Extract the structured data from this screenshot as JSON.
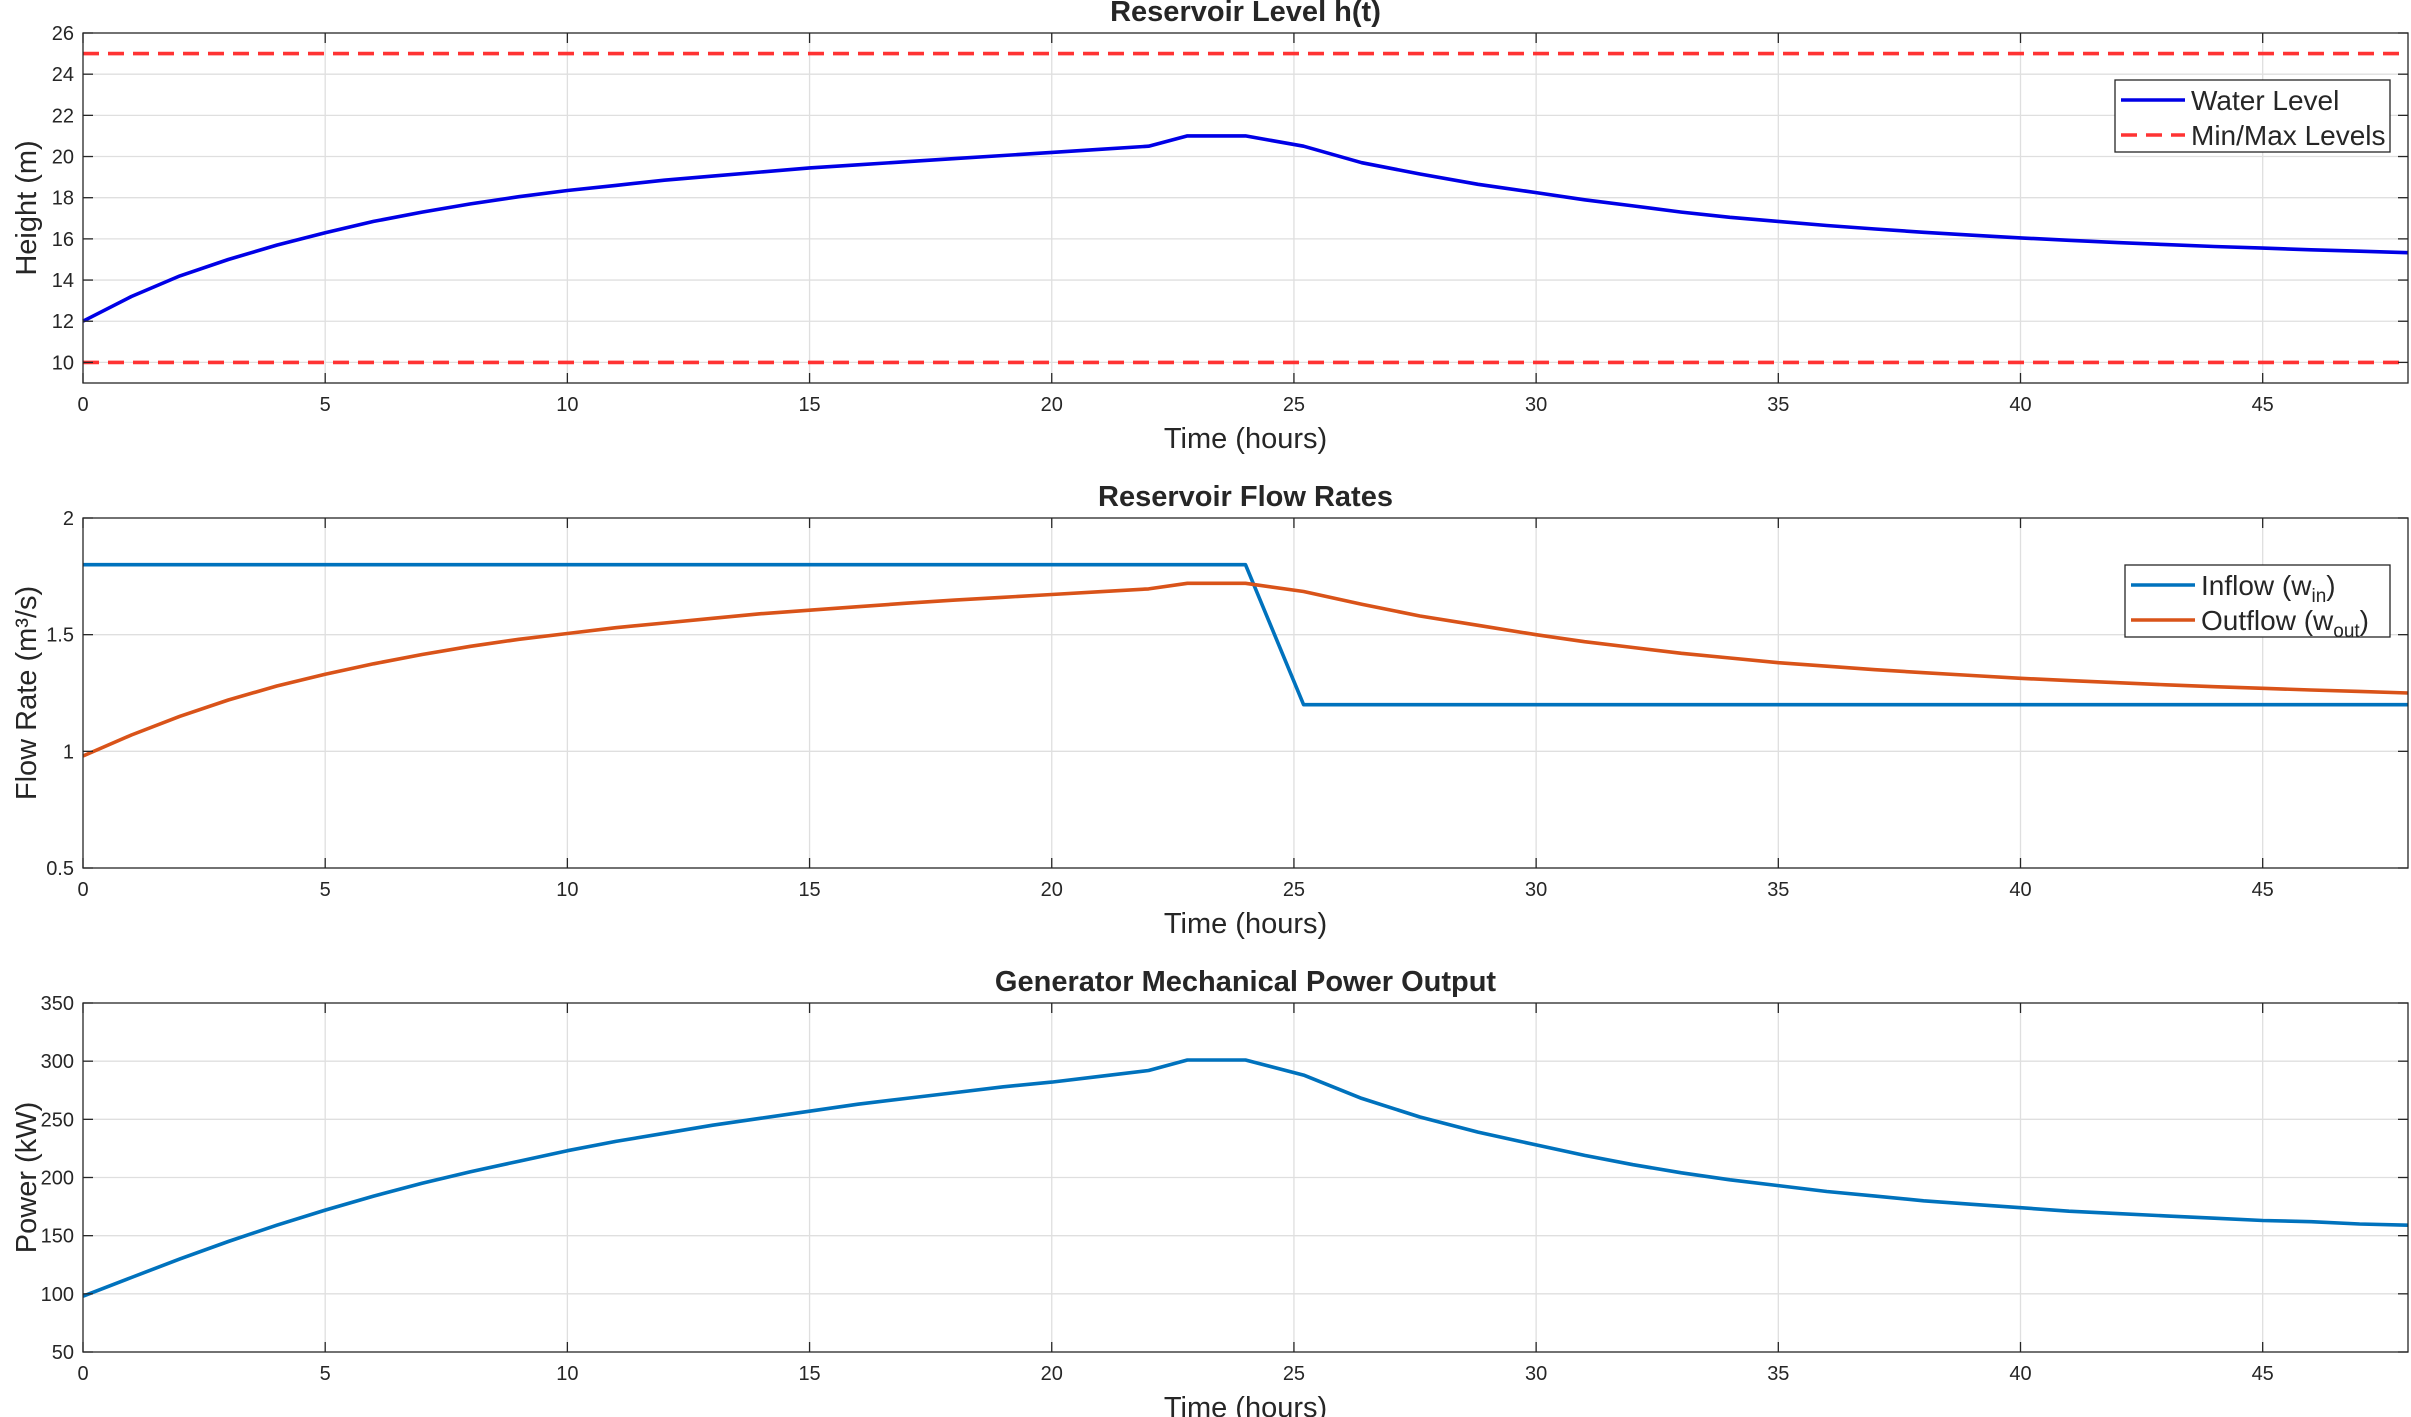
{
  "chart_data": [
    {
      "type": "line",
      "title": "Reservoir Level h(t)",
      "xlabel": "Time (hours)",
      "ylabel": "Height (m)",
      "xlim": [
        0,
        48
      ],
      "ylim": [
        9,
        26
      ],
      "xticks": [
        0,
        5,
        10,
        15,
        20,
        25,
        30,
        35,
        40,
        45
      ],
      "yticks": [
        10,
        12,
        14,
        16,
        18,
        20,
        22,
        24,
        26
      ],
      "grid": true,
      "legend": "top-right",
      "series": [
        {
          "name": "Water Level",
          "color": "#0000e6",
          "dash": "solid",
          "x": [
            0,
            1,
            2,
            3,
            4,
            5,
            6,
            7,
            8,
            9,
            10,
            11,
            12,
            13,
            14,
            15,
            16,
            17,
            18,
            19,
            20,
            21,
            22,
            22.8,
            24,
            25.2,
            26.4,
            27.6,
            28.8,
            30,
            31,
            32,
            33,
            34,
            35,
            36,
            37,
            38,
            39,
            40,
            41,
            42,
            43,
            44,
            45,
            46,
            47,
            48
          ],
          "y": [
            12.0,
            13.2,
            14.2,
            15.0,
            15.7,
            16.3,
            16.85,
            17.3,
            17.7,
            18.05,
            18.35,
            18.6,
            18.85,
            19.05,
            19.25,
            19.45,
            19.6,
            19.75,
            19.9,
            20.05,
            20.2,
            20.35,
            20.5,
            21.0,
            21.0,
            20.5,
            19.7,
            19.15,
            18.65,
            18.25,
            17.9,
            17.6,
            17.3,
            17.05,
            16.85,
            16.65,
            16.48,
            16.32,
            16.18,
            16.05,
            15.93,
            15.82,
            15.72,
            15.63,
            15.55,
            15.47,
            15.4,
            15.33
          ]
        },
        {
          "name": "Min/Max Levels",
          "color": "#ff3333",
          "dash": "dashed",
          "x": [
            0,
            48
          ],
          "y": [
            25,
            25
          ]
        },
        {
          "color": "#ff3333",
          "dash": "dashed",
          "x": [
            0,
            48
          ],
          "y": [
            10,
            10
          ]
        }
      ]
    },
    {
      "type": "line",
      "title": "Reservoir Flow Rates",
      "xlabel": "Time (hours)",
      "ylabel": "Flow  Rate  (m³/s)",
      "xlim": [
        0,
        48
      ],
      "ylim": [
        0.5,
        2
      ],
      "xticks": [
        0,
        5,
        10,
        15,
        20,
        25,
        30,
        35,
        40,
        45
      ],
      "yticks": [
        0.5,
        1,
        1.5,
        2
      ],
      "grid": true,
      "legend": "top-right",
      "series": [
        {
          "name": "Inflow  (w",
          "sub": "in",
          "color": "#0072bd",
          "dash": "solid",
          "x": [
            0,
            24,
            25.2,
            48
          ],
          "y": [
            1.8,
            1.8,
            1.2,
            1.2
          ]
        },
        {
          "name": "Outflow  (w",
          "sub": "out",
          "color": "#d95319",
          "dash": "solid",
          "x": [
            0,
            1,
            2,
            3,
            4,
            5,
            6,
            7,
            8,
            9,
            10,
            11,
            12,
            13,
            14,
            15,
            16,
            17,
            18,
            19,
            20,
            21,
            22,
            22.8,
            24,
            25.2,
            26.4,
            27.6,
            28.8,
            30,
            31,
            32,
            33,
            34,
            35,
            36,
            37,
            38,
            39,
            40,
            41,
            42,
            43,
            44,
            45,
            46,
            47,
            48
          ],
          "y": [
            0.98,
            1.07,
            1.15,
            1.22,
            1.28,
            1.33,
            1.375,
            1.415,
            1.45,
            1.48,
            1.505,
            1.53,
            1.55,
            1.57,
            1.59,
            1.605,
            1.62,
            1.635,
            1.648,
            1.66,
            1.672,
            1.684,
            1.696,
            1.72,
            1.72,
            1.685,
            1.63,
            1.58,
            1.54,
            1.5,
            1.47,
            1.445,
            1.42,
            1.4,
            1.38,
            1.365,
            1.35,
            1.337,
            1.325,
            1.313,
            1.303,
            1.294,
            1.285,
            1.277,
            1.27,
            1.263,
            1.257,
            1.25
          ]
        }
      ]
    },
    {
      "type": "line",
      "title": "Generator Mechanical Power Output",
      "xlabel": "Time (hours)",
      "ylabel": "Power (kW)",
      "xlim": [
        0,
        48
      ],
      "ylim": [
        50,
        350
      ],
      "xticks": [
        0,
        5,
        10,
        15,
        20,
        25,
        30,
        35,
        40,
        45
      ],
      "yticks": [
        50,
        100,
        150,
        200,
        250,
        300,
        350
      ],
      "grid": true,
      "legend": "none",
      "series": [
        {
          "color": "#0072bd",
          "dash": "solid",
          "x": [
            0,
            1,
            2,
            3,
            4,
            5,
            6,
            7,
            8,
            9,
            10,
            11,
            12,
            13,
            14,
            15,
            16,
            17,
            18,
            19,
            20,
            21,
            22,
            22.8,
            24,
            25.2,
            26.4,
            27.6,
            28.8,
            30,
            31,
            32,
            33,
            34,
            35,
            36,
            37,
            38,
            39,
            40,
            41,
            42,
            43,
            44,
            45,
            46,
            47,
            48
          ],
          "y": [
            98,
            114,
            130,
            145,
            159,
            172,
            184,
            195,
            205,
            214,
            223,
            231,
            238,
            245,
            251,
            257,
            263,
            268,
            273,
            278,
            282,
            287,
            292,
            301,
            301,
            288,
            268,
            252,
            239,
            228,
            219,
            211,
            204,
            198,
            193,
            188,
            184,
            180,
            177,
            174,
            171,
            169,
            167,
            165,
            163,
            162,
            160,
            159
          ]
        }
      ]
    }
  ]
}
